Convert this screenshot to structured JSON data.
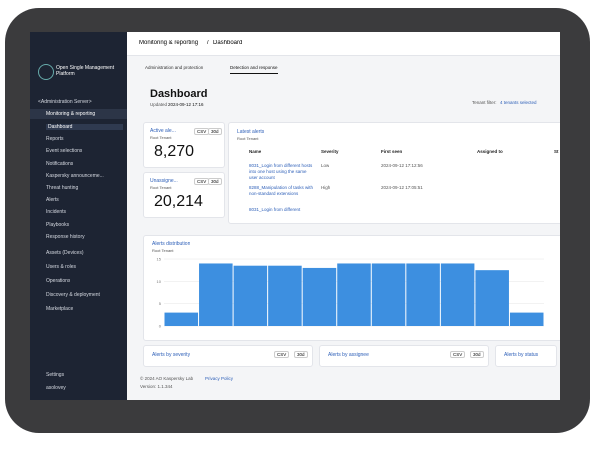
{
  "topbar": {
    "breadcrumb": "Monitoring & reporting",
    "page": "Dashboard"
  },
  "sidebar": {
    "product": "Open Single Management Platform",
    "server": "<Administration Server>",
    "section": "Monitoring & reporting",
    "subitems": [
      "Dashboard",
      "Reports",
      "Event selections",
      "Notifications",
      "Kaspersky announceme...",
      "Threat hunting",
      "Alerts",
      "Incidents",
      "Playbooks",
      "Response history"
    ],
    "items": [
      "Assets (Devices)",
      "Users & roles",
      "Operations",
      "Discovery & deployment",
      "Marketplace"
    ],
    "bottom": [
      "Settings",
      "asolovey"
    ]
  },
  "tabs": [
    "Administration and protection",
    "Detection and response"
  ],
  "header": {
    "title": "Dashboard",
    "updated_label": "Updated",
    "updated": "2024-09-12 17:16",
    "tenant_filter": "Tenant filter:",
    "tenants": "4 tenants selected"
  },
  "widgets": [
    {
      "title": "Active ale...",
      "export": "CSV",
      "period": "30d",
      "tenant": "Root Tenant",
      "value": "8,270"
    },
    {
      "title": "Unassigne...",
      "export": "CSV",
      "period": "30d",
      "tenant": "Root Tenant",
      "value": "20,214"
    }
  ],
  "latest_alerts": {
    "title": "Latest alerts",
    "tenant": "Root Tenant",
    "columns": [
      "Name",
      "Severity",
      "First seen",
      "Assigned to",
      "St"
    ],
    "rows": [
      [
        "8031_Login from different hosts into one host using the same user account",
        "Low",
        "2024-09-12 17:12:56"
      ],
      [
        "8288_Manipulation of tasks with non-standard extensions",
        "High",
        "2024-09-12 17:05:51"
      ],
      [
        "8031_Login from different",
        "",
        ""
      ]
    ]
  },
  "alerts_distribution": {
    "title": "Alerts distribution",
    "tenant": "Root Tenant",
    "type": "bar",
    "color": "#3d8fe0",
    "ylim": [
      0,
      15
    ],
    "yticks": [
      0,
      5,
      10,
      15
    ],
    "values": [
      3,
      14,
      13.5,
      13.5,
      13,
      14,
      14,
      14,
      14,
      12.5,
      3
    ]
  },
  "bottom_widgets": [
    {
      "title": "Alerts by severity",
      "export": "CSV",
      "period": "30d"
    },
    {
      "title": "Alerts by assignee",
      "export": "CSV",
      "period": "30d"
    },
    {
      "title": "Alerts by status"
    }
  ],
  "footer": {
    "copyright": "© 2024 AO Kaspersky Lab",
    "privacy": "Privacy Policy",
    "version": "Version: 1.1.344"
  }
}
